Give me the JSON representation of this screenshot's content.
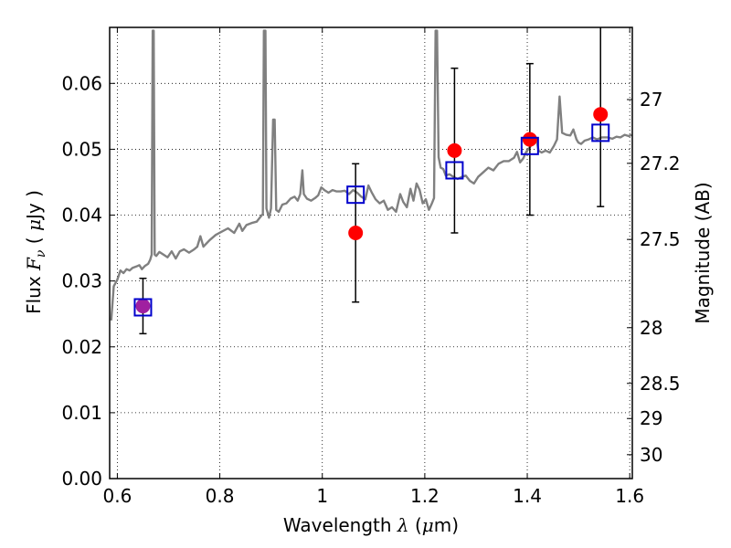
{
  "chart_data": {
    "type": "scatter",
    "xlabel": "Wavelength  λ (μm)",
    "ylabel": "Flux  Fν  ( μJy )",
    "ylabel_parts": {
      "pre": "Flux  ",
      "sym": "F",
      "sub": "ν",
      "mid": "  ( ",
      "mu": "μ",
      "post": "Jy )"
    },
    "xlabel_parts": {
      "pre": "Wavelength  ",
      "sym": "λ",
      "mid": " (",
      "mu": "μ",
      "post": "m)"
    },
    "y2label": "Magnitude (AB)",
    "xlim": [
      0.585,
      1.605
    ],
    "ylim": [
      0.0,
      0.0685
    ],
    "grid": true,
    "x_ticks": [
      {
        "v": 0.6,
        "label": "0.6"
      },
      {
        "v": 0.8,
        "label": "0.8"
      },
      {
        "v": 1.0,
        "label": "1"
      },
      {
        "v": 1.2,
        "label": "1.2"
      },
      {
        "v": 1.4,
        "label": "1.4"
      },
      {
        "v": 1.6,
        "label": "1.6"
      }
    ],
    "y_ticks": [
      {
        "v": 0.0,
        "label": "0.00"
      },
      {
        "v": 0.01,
        "label": "0.01"
      },
      {
        "v": 0.02,
        "label": "0.02"
      },
      {
        "v": 0.03,
        "label": "0.03"
      },
      {
        "v": 0.04,
        "label": "0.04"
      },
      {
        "v": 0.05,
        "label": "0.05"
      },
      {
        "v": 0.06,
        "label": "0.06"
      }
    ],
    "mag_ticks": [
      {
        "mag": 27,
        "label": "27"
      },
      {
        "mag": 27.2,
        "label": "27.2"
      },
      {
        "mag": 27.5,
        "label": "27.5"
      },
      {
        "mag": 28,
        "label": "28"
      },
      {
        "mag": 28.5,
        "label": "28.5"
      },
      {
        "mag": 29,
        "label": "29"
      },
      {
        "mag": 30,
        "label": "30"
      }
    ],
    "observed": {
      "color": "#ff0000",
      "points": [
        {
          "x": 0.65,
          "y": 0.0262,
          "err": 0.0042
        },
        {
          "x": 1.065,
          "y": 0.0373,
          "err": 0.0105
        },
        {
          "x": 1.258,
          "y": 0.0498,
          "err": 0.0125
        },
        {
          "x": 1.405,
          "y": 0.0515,
          "err": 0.0115
        },
        {
          "x": 1.543,
          "y": 0.0553,
          "err": 0.014
        }
      ]
    },
    "model_points": {
      "color": "#0000cc",
      "points": [
        {
          "x": 0.65,
          "y": 0.026
        },
        {
          "x": 1.065,
          "y": 0.0431
        },
        {
          "x": 1.258,
          "y": 0.0468
        },
        {
          "x": 1.405,
          "y": 0.0505
        },
        {
          "x": 1.543,
          "y": 0.0525
        }
      ]
    },
    "overlap_color": "#a020a0",
    "spectrum": {
      "color": "#808080",
      "points": [
        [
          0.588,
          0.024
        ],
        [
          0.593,
          0.0292
        ],
        [
          0.6,
          0.0302
        ],
        [
          0.606,
          0.0316
        ],
        [
          0.612,
          0.0312
        ],
        [
          0.618,
          0.0318
        ],
        [
          0.624,
          0.0316
        ],
        [
          0.63,
          0.032
        ],
        [
          0.637,
          0.0322
        ],
        [
          0.643,
          0.0324
        ],
        [
          0.648,
          0.0318
        ],
        [
          0.654,
          0.0323
        ],
        [
          0.66,
          0.0326
        ],
        [
          0.664,
          0.0332
        ],
        [
          0.667,
          0.034
        ],
        [
          0.669,
          0.068
        ],
        [
          0.671,
          0.068
        ],
        [
          0.673,
          0.034
        ],
        [
          0.676,
          0.0338
        ],
        [
          0.682,
          0.0344
        ],
        [
          0.69,
          0.034
        ],
        [
          0.698,
          0.0336
        ],
        [
          0.706,
          0.0345
        ],
        [
          0.714,
          0.0334
        ],
        [
          0.722,
          0.0345
        ],
        [
          0.73,
          0.0348
        ],
        [
          0.74,
          0.0343
        ],
        [
          0.75,
          0.0348
        ],
        [
          0.756,
          0.0352
        ],
        [
          0.762,
          0.0368
        ],
        [
          0.768,
          0.0352
        ],
        [
          0.78,
          0.0362
        ],
        [
          0.792,
          0.037
        ],
        [
          0.804,
          0.0375
        ],
        [
          0.816,
          0.038
        ],
        [
          0.828,
          0.0373
        ],
        [
          0.838,
          0.0387
        ],
        [
          0.844,
          0.0376
        ],
        [
          0.852,
          0.0385
        ],
        [
          0.862,
          0.0388
        ],
        [
          0.872,
          0.039
        ],
        [
          0.878,
          0.0396
        ],
        [
          0.884,
          0.0402
        ],
        [
          0.886,
          0.068
        ],
        [
          0.889,
          0.068
        ],
        [
          0.891,
          0.041
        ],
        [
          0.896,
          0.0396
        ],
        [
          0.9,
          0.041
        ],
        [
          0.904,
          0.0545
        ],
        [
          0.907,
          0.0545
        ],
        [
          0.91,
          0.0408
        ],
        [
          0.915,
          0.0405
        ],
        [
          0.922,
          0.0416
        ],
        [
          0.93,
          0.0418
        ],
        [
          0.938,
          0.0425
        ],
        [
          0.946,
          0.0428
        ],
        [
          0.952,
          0.0422
        ],
        [
          0.957,
          0.0432
        ],
        [
          0.961,
          0.0468
        ],
        [
          0.964,
          0.0432
        ],
        [
          0.97,
          0.0425
        ],
        [
          0.978,
          0.0422
        ],
        [
          0.986,
          0.0426
        ],
        [
          0.992,
          0.043
        ],
        [
          0.998,
          0.0442
        ],
        [
          1.004,
          0.0438
        ],
        [
          1.012,
          0.0434
        ],
        [
          1.02,
          0.0438
        ],
        [
          1.028,
          0.0436
        ],
        [
          1.036,
          0.0436
        ],
        [
          1.044,
          0.0437
        ],
        [
          1.052,
          0.0432
        ],
        [
          1.06,
          0.0438
        ],
        [
          1.068,
          0.0434
        ],
        [
          1.076,
          0.0428
        ],
        [
          1.084,
          0.0424
        ],
        [
          1.09,
          0.0445
        ],
        [
          1.096,
          0.0435
        ],
        [
          1.104,
          0.0424
        ],
        [
          1.112,
          0.0418
        ],
        [
          1.12,
          0.0422
        ],
        [
          1.128,
          0.0408
        ],
        [
          1.136,
          0.0412
        ],
        [
          1.144,
          0.0405
        ],
        [
          1.152,
          0.0432
        ],
        [
          1.158,
          0.042
        ],
        [
          1.165,
          0.0412
        ],
        [
          1.172,
          0.044
        ],
        [
          1.178,
          0.0422
        ],
        [
          1.184,
          0.0448
        ],
        [
          1.19,
          0.0438
        ],
        [
          1.196,
          0.0418
        ],
        [
          1.202,
          0.0424
        ],
        [
          1.208,
          0.0408
        ],
        [
          1.214,
          0.0418
        ],
        [
          1.218,
          0.0426
        ],
        [
          1.221,
          0.068
        ],
        [
          1.224,
          0.068
        ],
        [
          1.227,
          0.0488
        ],
        [
          1.231,
          0.0472
        ],
        [
          1.236,
          0.047
        ],
        [
          1.241,
          0.046
        ],
        [
          1.248,
          0.0462
        ],
        [
          1.256,
          0.0458
        ],
        [
          1.264,
          0.0455
        ],
        [
          1.272,
          0.0458
        ],
        [
          1.28,
          0.046
        ],
        [
          1.288,
          0.0452
        ],
        [
          1.296,
          0.0448
        ],
        [
          1.304,
          0.0458
        ],
        [
          1.314,
          0.0465
        ],
        [
          1.324,
          0.0472
        ],
        [
          1.334,
          0.0468
        ],
        [
          1.344,
          0.0478
        ],
        [
          1.354,
          0.0482
        ],
        [
          1.364,
          0.0482
        ],
        [
          1.374,
          0.0487
        ],
        [
          1.38,
          0.0496
        ],
        [
          1.386,
          0.048
        ],
        [
          1.392,
          0.0486
        ],
        [
          1.398,
          0.0496
        ],
        [
          1.405,
          0.0503
        ],
        [
          1.412,
          0.0511
        ],
        [
          1.418,
          0.0515
        ],
        [
          1.422,
          0.0498
        ],
        [
          1.428,
          0.0495
        ],
        [
          1.436,
          0.0498
        ],
        [
          1.444,
          0.0495
        ],
        [
          1.452,
          0.0505
        ],
        [
          1.458,
          0.0515
        ],
        [
          1.463,
          0.058
        ],
        [
          1.468,
          0.0525
        ],
        [
          1.476,
          0.0522
        ],
        [
          1.484,
          0.0521
        ],
        [
          1.49,
          0.053
        ],
        [
          1.496,
          0.0515
        ],
        [
          1.5,
          0.051
        ],
        [
          1.505,
          0.0508
        ],
        [
          1.512,
          0.0513
        ],
        [
          1.52,
          0.0515
        ],
        [
          1.528,
          0.0518
        ],
        [
          1.536,
          0.0515
        ],
        [
          1.546,
          0.0518
        ],
        [
          1.556,
          0.0518
        ],
        [
          1.566,
          0.0516
        ],
        [
          1.574,
          0.0519
        ],
        [
          1.582,
          0.0518
        ],
        [
          1.59,
          0.0522
        ],
        [
          1.598,
          0.052
        ],
        [
          1.604,
          0.0522
        ]
      ]
    }
  }
}
